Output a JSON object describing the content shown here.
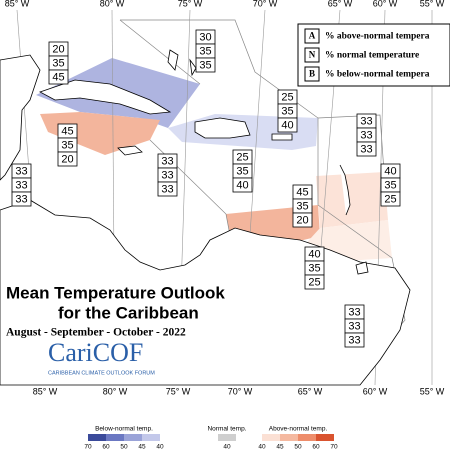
{
  "title": {
    "line1": "Mean Temperature Outlook",
    "line2": "for the Caribbean",
    "period": "August - September - October - 2022"
  },
  "logo": {
    "name": "CariCOF",
    "subtitle": "CARIBBEAN CLIMATE OUTLOOK FORUM"
  },
  "key": [
    {
      "letter": "A",
      "text": "% above-normal tempera"
    },
    {
      "letter": "N",
      "text": "% normal temperature"
    },
    {
      "letter": "B",
      "text": "% below-normal tempera"
    }
  ],
  "longitudes_top": [
    "85° W",
    "80° W",
    "75° W",
    "70° W",
    "65° W",
    "60° W",
    "55° W"
  ],
  "longitudes_bottom": [
    "85° W",
    "80° W",
    "75° W",
    "70° W",
    "65° W",
    "60° W",
    "55° W"
  ],
  "regions": [
    {
      "above": 20,
      "normal": 35,
      "below": 45
    },
    {
      "above": 30,
      "normal": 35,
      "below": 35
    },
    {
      "above": 25,
      "normal": 35,
      "below": 40
    },
    {
      "above": 45,
      "normal": 35,
      "below": 20
    },
    {
      "above": 33,
      "normal": 33,
      "below": 33
    },
    {
      "above": 33,
      "normal": 33,
      "below": 33
    },
    {
      "above": 25,
      "normal": 35,
      "below": 40
    },
    {
      "above": 33,
      "normal": 33,
      "below": 33
    },
    {
      "above": 40,
      "normal": 35,
      "below": 25
    },
    {
      "above": 45,
      "normal": 35,
      "below": 20
    },
    {
      "above": 40,
      "normal": 35,
      "below": 25
    },
    {
      "above": 33,
      "normal": 33,
      "below": 33
    }
  ],
  "colorbar": {
    "below": {
      "label": "Below-normal temp.",
      "ticks": [
        70,
        60,
        50,
        45,
        40
      ]
    },
    "normal": {
      "label": "Normal temp.",
      "ticks": [
        40
      ]
    },
    "above": {
      "label": "Above-normal temp.",
      "ticks": [
        40,
        45,
        50,
        60,
        70
      ]
    }
  }
}
